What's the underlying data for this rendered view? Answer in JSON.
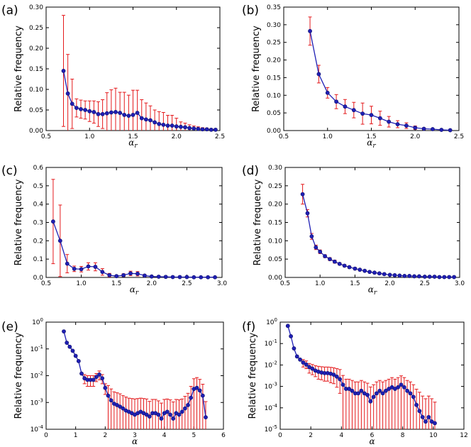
{
  "chart_data": [
    {
      "panel": "(a)",
      "type": "line",
      "xlabel": "α_r",
      "ylabel": "Relative frequency",
      "xlim": [
        0.5,
        2.5
      ],
      "ylim": [
        0,
        0.3
      ],
      "yscale": "linear",
      "xticks": [
        "0.5",
        "1.0",
        "1.5",
        "2.0",
        "2.5"
      ],
      "yticks": [
        "0.00",
        "0.05",
        "0.10",
        "0.15",
        "0.20",
        "0.25",
        "0.30"
      ],
      "line_color": "#1f1fb4",
      "errorbar_color": "#e41a1c",
      "x": [
        0.7,
        0.75,
        0.8,
        0.85,
        0.9,
        0.95,
        1.0,
        1.05,
        1.1,
        1.15,
        1.2,
        1.25,
        1.3,
        1.35,
        1.4,
        1.45,
        1.5,
        1.55,
        1.6,
        1.65,
        1.7,
        1.75,
        1.8,
        1.85,
        1.9,
        1.95,
        2.0,
        2.05,
        2.1,
        2.15,
        2.2,
        2.25,
        2.3,
        2.35,
        2.4,
        2.45
      ],
      "y": [
        0.145,
        0.09,
        0.065,
        0.055,
        0.052,
        0.05,
        0.047,
        0.045,
        0.04,
        0.04,
        0.042,
        0.044,
        0.045,
        0.043,
        0.038,
        0.036,
        0.038,
        0.043,
        0.03,
        0.027,
        0.025,
        0.02,
        0.016,
        0.014,
        0.012,
        0.012,
        0.01,
        0.009,
        0.008,
        0.006,
        0.005,
        0.004,
        0.003,
        0.003,
        0.002,
        0.002
      ],
      "err": [
        0.135,
        0.095,
        0.06,
        0.022,
        0.022,
        0.022,
        0.025,
        0.027,
        0.03,
        0.035,
        0.05,
        0.055,
        0.058,
        0.05,
        0.055,
        0.05,
        0.06,
        0.055,
        0.045,
        0.04,
        0.035,
        0.03,
        0.03,
        0.03,
        0.025,
        0.025,
        0.02,
        0.012,
        0.01,
        0.008,
        0.006,
        0.005,
        0.004,
        0.003,
        0.002,
        0.002
      ]
    },
    {
      "panel": "(b)",
      "type": "line",
      "xlabel": "α_r",
      "ylabel": "Relative frequency",
      "xlim": [
        0.5,
        2.5
      ],
      "ylim": [
        0,
        0.35
      ],
      "yscale": "linear",
      "xticks": [
        "0.5",
        "1.0",
        "1.5",
        "2.0",
        "2.5"
      ],
      "yticks": [
        "0.00",
        "0.05",
        "0.10",
        "0.15",
        "0.20",
        "0.25",
        "0.30",
        "0.35"
      ],
      "line_color": "#1f1fb4",
      "errorbar_color": "#e41a1c",
      "x": [
        0.8,
        0.9,
        1.0,
        1.1,
        1.2,
        1.3,
        1.4,
        1.5,
        1.6,
        1.7,
        1.8,
        1.9,
        2.0,
        2.1,
        2.2,
        2.3,
        2.4
      ],
      "y": [
        0.282,
        0.16,
        0.107,
        0.082,
        0.068,
        0.058,
        0.048,
        0.044,
        0.035,
        0.025,
        0.018,
        0.014,
        0.008,
        0.005,
        0.004,
        0.002,
        0.001
      ],
      "err": [
        0.04,
        0.025,
        0.015,
        0.02,
        0.02,
        0.022,
        0.03,
        0.025,
        0.02,
        0.015,
        0.01,
        0.008,
        0.005,
        0.003,
        0.002,
        0.001,
        0.001
      ]
    },
    {
      "panel": "(c)",
      "type": "line",
      "xlabel": "α_r",
      "ylabel": "Relative frequency",
      "xlim": [
        0.5,
        3.0
      ],
      "ylim": [
        0,
        0.6
      ],
      "yscale": "linear",
      "xticks": [
        "0.5",
        "1.0",
        "1.5",
        "2.0",
        "2.5",
        "3.0"
      ],
      "yticks": [
        "0.0",
        "0.1",
        "0.2",
        "0.3",
        "0.4",
        "0.5",
        "0.6"
      ],
      "line_color": "#1f1fb4",
      "errorbar_color": "#e41a1c",
      "x": [
        0.6,
        0.7,
        0.8,
        0.9,
        1.0,
        1.1,
        1.2,
        1.3,
        1.4,
        1.5,
        1.6,
        1.7,
        1.8,
        1.9,
        2.0,
        2.1,
        2.2,
        2.3,
        2.4,
        2.5,
        2.6,
        2.7,
        2.8,
        2.9
      ],
      "y": [
        0.305,
        0.2,
        0.075,
        0.047,
        0.045,
        0.06,
        0.058,
        0.03,
        0.012,
        0.007,
        0.012,
        0.022,
        0.02,
        0.01,
        0.005,
        0.004,
        0.003,
        0.002,
        0.002,
        0.002,
        0.001,
        0.001,
        0.001,
        0.001
      ],
      "err": [
        0.23,
        0.195,
        0.05,
        0.015,
        0.015,
        0.02,
        0.022,
        0.018,
        0.01,
        0.005,
        0.008,
        0.012,
        0.012,
        0.006,
        0.003,
        0.002,
        0.002,
        0.001,
        0.001,
        0.001,
        0.001,
        0.001,
        0.001,
        0.001
      ]
    },
    {
      "panel": "(d)",
      "type": "line",
      "xlabel": "α_r",
      "ylabel": "Relative frequency",
      "xlim": [
        0.5,
        3.0
      ],
      "ylim": [
        0,
        0.3
      ],
      "yscale": "linear",
      "xticks": [
        "0.5",
        "1.0",
        "1.5",
        "2.0",
        "2.5",
        "3.0"
      ],
      "yticks": [
        "0.00",
        "0.05",
        "0.10",
        "0.15",
        "0.20",
        "0.25",
        "0.30"
      ],
      "line_color": "#1f1fb4",
      "errorbar_color": "#e41a1c",
      "x": [
        0.75,
        0.82,
        0.88,
        0.94,
        1.0,
        1.07,
        1.14,
        1.21,
        1.28,
        1.35,
        1.42,
        1.5,
        1.57,
        1.64,
        1.71,
        1.78,
        1.85,
        1.92,
        2.0,
        2.07,
        2.14,
        2.21,
        2.28,
        2.35,
        2.42,
        2.5,
        2.57,
        2.64,
        2.71,
        2.78,
        2.85,
        2.92
      ],
      "y": [
        0.227,
        0.175,
        0.112,
        0.082,
        0.07,
        0.058,
        0.05,
        0.043,
        0.037,
        0.032,
        0.028,
        0.024,
        0.021,
        0.018,
        0.015,
        0.013,
        0.011,
        0.009,
        0.007,
        0.006,
        0.005,
        0.004,
        0.004,
        0.003,
        0.003,
        0.002,
        0.002,
        0.002,
        0.001,
        0.001,
        0.001,
        0.001
      ],
      "err": [
        0.027,
        0.01,
        0.008,
        0.006,
        0.005,
        0.004,
        0.004,
        0.004,
        0.003,
        0.003,
        0.003,
        0.003,
        0.002,
        0.002,
        0.002,
        0.002,
        0.002,
        0.002,
        0.001,
        0.001,
        0.001,
        0.001,
        0.001,
        0.001,
        0.001,
        0.001,
        0.001,
        0.001,
        0.001,
        0.001,
        0.001,
        0.001
      ]
    },
    {
      "panel": "(e)",
      "type": "line",
      "xlabel": "α",
      "ylabel": "Relative frequency",
      "xlim": [
        0,
        6
      ],
      "ylim": [
        0.0001,
        1
      ],
      "yscale": "log",
      "xticks": [
        "0",
        "1",
        "2",
        "3",
        "4",
        "5",
        "6"
      ],
      "yticks": [
        "10^-4",
        "10^-3",
        "10^-2",
        "10^-1",
        "10^0"
      ],
      "line_color": "#1f1fb4",
      "errorbar_color": "#e41a1c",
      "x": [
        0.6,
        0.7,
        0.8,
        0.9,
        1.0,
        1.1,
        1.2,
        1.3,
        1.4,
        1.5,
        1.6,
        1.7,
        1.8,
        1.9,
        2.0,
        2.1,
        2.2,
        2.3,
        2.4,
        2.5,
        2.6,
        2.7,
        2.8,
        2.9,
        3.0,
        3.1,
        3.2,
        3.3,
        3.4,
        3.5,
        3.6,
        3.7,
        3.8,
        3.9,
        4.0,
        4.1,
        4.2,
        4.3,
        4.4,
        4.5,
        4.6,
        4.7,
        4.8,
        4.9,
        5.0,
        5.1,
        5.2,
        5.3,
        5.4
      ],
      "y": [
        0.45,
        0.17,
        0.12,
        0.085,
        0.055,
        0.035,
        0.012,
        0.008,
        0.007,
        0.007,
        0.007,
        0.009,
        0.011,
        0.008,
        0.0035,
        0.0018,
        0.0012,
        0.0009,
        0.0008,
        0.0007,
        0.0006,
        0.0005,
        0.00045,
        0.0004,
        0.00035,
        0.0004,
        0.00045,
        0.0004,
        0.00035,
        0.0003,
        0.0004,
        0.0004,
        0.00035,
        0.00025,
        0.0004,
        0.00045,
        0.00035,
        0.00025,
        0.0004,
        0.00035,
        0.00045,
        0.0006,
        0.0008,
        0.0015,
        0.0032,
        0.0035,
        0.0028,
        0.0018,
        0.00028
      ],
      "err_up": [
        0,
        0,
        0,
        0,
        0,
        0,
        0,
        0.003,
        0.003,
        0.003,
        0.003,
        0.003,
        0.004,
        0.003,
        0.0015,
        0.0025,
        0.002,
        0.0016,
        0.0015,
        0.0014,
        0.0012,
        0.0011,
        0.001,
        0.001,
        0.001,
        0.001,
        0.001,
        0.001,
        0.001,
        0.0008,
        0.0009,
        0.0009,
        0.0008,
        0.0007,
        0.0009,
        0.0009,
        0.0009,
        0.0008,
        0.0009,
        0.0009,
        0.0009,
        0.0011,
        0.0014,
        0.0025,
        0.0045,
        0.005,
        0.0045,
        0.003,
        0.0008
      ],
      "err_down": [
        0,
        0,
        0,
        0,
        0,
        0,
        0,
        0.003,
        0.003,
        0.003,
        0.003,
        0.003,
        0.004,
        0.003,
        0.0015,
        0.0018,
        0.0012,
        0.0009,
        0.0008,
        0.0007,
        0.0006,
        0.0005,
        0.00045,
        0.0004,
        0.00035,
        0.0004,
        0.00045,
        0.0004,
        0.00035,
        0.0003,
        0.0004,
        0.0004,
        0.00035,
        0.00025,
        0.0004,
        0.00045,
        0.00035,
        0.00025,
        0.0004,
        0.00035,
        0.00045,
        0.0006,
        0.0008,
        0.0015,
        0.0032,
        0.0035,
        0.0028,
        0.0018,
        0.00028
      ]
    },
    {
      "panel": "(f)",
      "type": "line",
      "xlabel": "α",
      "ylabel": "Relative frequency",
      "xlim": [
        0,
        12
      ],
      "ylim": [
        5e-06,
        1
      ],
      "yscale": "log",
      "xticks": [
        "0",
        "2",
        "4",
        "6",
        "8",
        "10",
        "12"
      ],
      "yticks": [
        "10^-5",
        "10^-4",
        "10^-3",
        "10^-2",
        "10^-1",
        "10^0"
      ],
      "line_color": "#1f1fb4",
      "errorbar_color": "#e41a1c",
      "x": [
        0.5,
        0.7,
        0.9,
        1.1,
        1.3,
        1.5,
        1.7,
        1.9,
        2.1,
        2.3,
        2.5,
        2.7,
        2.9,
        3.1,
        3.3,
        3.5,
        3.7,
        3.9,
        4.1,
        4.3,
        4.5,
        4.7,
        4.9,
        5.1,
        5.3,
        5.5,
        5.7,
        5.9,
        6.1,
        6.3,
        6.5,
        6.7,
        6.9,
        7.1,
        7.3,
        7.5,
        7.7,
        7.9,
        8.1,
        8.3,
        8.5,
        8.7,
        8.9,
        9.1,
        9.3,
        9.5,
        9.7,
        9.9,
        10.1
      ],
      "y": [
        0.65,
        0.2,
        0.05,
        0.02,
        0.014,
        0.01,
        0.008,
        0.006,
        0.005,
        0.004,
        0.0035,
        0.0032,
        0.003,
        0.003,
        0.0028,
        0.0025,
        0.002,
        0.0015,
        0.0008,
        0.0005,
        0.0005,
        0.0004,
        0.0003,
        0.0003,
        0.0004,
        0.0003,
        0.00025,
        0.00012,
        0.0002,
        0.0003,
        0.0004,
        0.0003,
        0.0004,
        0.0005,
        0.0006,
        0.0005,
        0.0006,
        0.0008,
        0.0006,
        0.0004,
        0.0003,
        0.0002,
        8e-05,
        4e-05,
        2e-05,
        1.2e-05,
        2e-05,
        1.2e-05,
        1e-05
      ],
      "err_up": [
        0,
        0,
        0,
        0,
        0,
        0.004,
        0.004,
        0.003,
        0.003,
        0.003,
        0.003,
        0.003,
        0.003,
        0.003,
        0.003,
        0.003,
        0.003,
        0.003,
        0.0015,
        0.001,
        0.001,
        0.0009,
        0.0008,
        0.0008,
        0.0009,
        0.0008,
        0.0007,
        0.0005,
        0.0006,
        0.0008,
        0.0009,
        0.0008,
        0.0009,
        0.001,
        0.0012,
        0.001,
        0.0012,
        0.0014,
        0.0012,
        0.0009,
        0.0008,
        0.0006,
        0.0004,
        0.0003,
        0.0002,
        0.00015,
        0.0002,
        0.00015,
        0.0001
      ],
      "err_down": [
        0,
        0,
        0,
        0,
        0,
        0.004,
        0.003,
        0.003,
        0.0025,
        0.002,
        0.002,
        0.0018,
        0.0018,
        0.0018,
        0.0018,
        0.0016,
        0.0014,
        0.0012,
        0.0008,
        0.0005,
        0.0005,
        0.0004,
        0.0003,
        0.0003,
        0.0004,
        0.0003,
        0.00025,
        0.00012,
        0.0002,
        0.0003,
        0.0004,
        0.0003,
        0.0004,
        0.0005,
        0.0006,
        0.0005,
        0.0006,
        0.0008,
        0.0006,
        0.0004,
        0.0003,
        0.0002,
        8e-05,
        4e-05,
        2e-05,
        1.2e-05,
        2e-05,
        1.2e-05,
        1e-05
      ]
    }
  ]
}
